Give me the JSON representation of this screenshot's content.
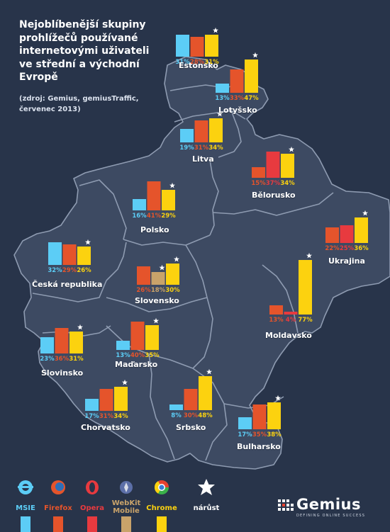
{
  "title": "Nejoblíbenější skupiny\nprohlížečů používané\ninternetovými uživateli\nve střední a východní\nEvropě",
  "source": "(zdroj: Gemius, gemiusTraffic,\nčervenec 2013)",
  "legend": {
    "msie": "MSIE",
    "firefox": "Firefox",
    "opera": "Opera",
    "webkit": "WebKit\nMobile",
    "chrome": "Chrome",
    "growth": "nárůst"
  },
  "colors": {
    "msie": "#5ccdf6",
    "firefox": "#e5542b",
    "opera": "#e83a3f",
    "webkit": "#c9a36a",
    "chrome": "#fcd20f",
    "star": "#ffffff",
    "map_fill": "#3d4a62",
    "map_border": "#8e9bb1"
  },
  "logo": "Gemius",
  "logo_tagline": "DEFINING ONLINE SUCCESS",
  "chart_data": {
    "type": "bar",
    "unit": "%",
    "series_order": [
      "MSIE",
      "Firefox",
      "Opera",
      "WebKit Mobile",
      "Chrome"
    ],
    "countries": [
      {
        "name": "Estonsko",
        "bars": [
          {
            "browser": "msie",
            "value": 31,
            "label": "31%"
          },
          {
            "browser": "firefox",
            "value": 28,
            "label": "28%"
          },
          {
            "browser": "chrome",
            "value": 31,
            "label": "31%",
            "star": true
          }
        ]
      },
      {
        "name": "Lotyšsko",
        "bars": [
          {
            "browser": "msie",
            "value": 13,
            "label": "13%"
          },
          {
            "browser": "firefox",
            "value": 33,
            "label": "33%"
          },
          {
            "browser": "chrome",
            "value": 47,
            "label": "47%",
            "star": true
          }
        ]
      },
      {
        "name": "Litva",
        "bars": [
          {
            "browser": "msie",
            "value": 19,
            "label": "19%"
          },
          {
            "browser": "firefox",
            "value": 31,
            "label": "31%"
          },
          {
            "browser": "chrome",
            "value": 34,
            "label": "34%",
            "star": true
          }
        ]
      },
      {
        "name": "Bělorusko",
        "bars": [
          {
            "browser": "firefox",
            "value": 15,
            "label": "15%"
          },
          {
            "browser": "opera",
            "value": 37,
            "label": "37%"
          },
          {
            "browser": "chrome",
            "value": 34,
            "label": "34%",
            "star": true
          }
        ]
      },
      {
        "name": "Polsko",
        "bars": [
          {
            "browser": "msie",
            "value": 16,
            "label": "16%"
          },
          {
            "browser": "firefox",
            "value": 41,
            "label": "41%"
          },
          {
            "browser": "chrome",
            "value": 29,
            "label": "29%",
            "star": true
          }
        ]
      },
      {
        "name": "Ukrajina",
        "bars": [
          {
            "browser": "firefox",
            "value": 22,
            "label": "22%"
          },
          {
            "browser": "opera",
            "value": 25,
            "label": "25%"
          },
          {
            "browser": "chrome",
            "value": 36,
            "label": "36%",
            "star": true
          }
        ]
      },
      {
        "name": "Česká republika",
        "bars": [
          {
            "browser": "msie",
            "value": 32,
            "label": "32%"
          },
          {
            "browser": "firefox",
            "value": 29,
            "label": "29%"
          },
          {
            "browser": "chrome",
            "value": 26,
            "label": "26%",
            "star": true
          }
        ]
      },
      {
        "name": "Slovensko",
        "bars": [
          {
            "browser": "firefox",
            "value": 26,
            "label": "26%"
          },
          {
            "browser": "webkit",
            "value": 18,
            "label": "18%",
            "star": true
          },
          {
            "browser": "chrome",
            "value": 30,
            "label": "30%",
            "star": true
          }
        ]
      },
      {
        "name": "Moldavsko",
        "bars": [
          {
            "browser": "firefox",
            "value": 13,
            "label": "13%"
          },
          {
            "browser": "opera",
            "value": 4,
            "label": "4%"
          },
          {
            "browser": "chrome",
            "value": 77,
            "label": "77%",
            "star": true
          }
        ]
      },
      {
        "name": "Slovinsko",
        "bars": [
          {
            "browser": "msie",
            "value": 23,
            "label": "23%"
          },
          {
            "browser": "firefox",
            "value": 36,
            "label": "36%"
          },
          {
            "browser": "chrome",
            "value": 31,
            "label": "31%",
            "star": true
          }
        ]
      },
      {
        "name": "Maďarsko",
        "bars": [
          {
            "browser": "msie",
            "value": 13,
            "label": "13%"
          },
          {
            "browser": "firefox",
            "value": 40,
            "label": "40%"
          },
          {
            "browser": "chrome",
            "value": 35,
            "label": "35%",
            "star": true
          }
        ]
      },
      {
        "name": "Chorvatsko",
        "bars": [
          {
            "browser": "msie",
            "value": 17,
            "label": "17%"
          },
          {
            "browser": "firefox",
            "value": 31,
            "label": "31%"
          },
          {
            "browser": "chrome",
            "value": 34,
            "label": "34%",
            "star": true
          }
        ]
      },
      {
        "name": "Srbsko",
        "bars": [
          {
            "browser": "msie",
            "value": 8,
            "label": "8%"
          },
          {
            "browser": "firefox",
            "value": 30,
            "label": "30%"
          },
          {
            "browser": "chrome",
            "value": 48,
            "label": "48%",
            "star": true
          }
        ]
      },
      {
        "name": "Bulharsko",
        "bars": [
          {
            "browser": "msie",
            "value": 17,
            "label": "17%"
          },
          {
            "browser": "firefox",
            "value": 35,
            "label": "35%"
          },
          {
            "browser": "chrome",
            "value": 38,
            "label": "38%",
            "star": true
          }
        ]
      }
    ]
  }
}
